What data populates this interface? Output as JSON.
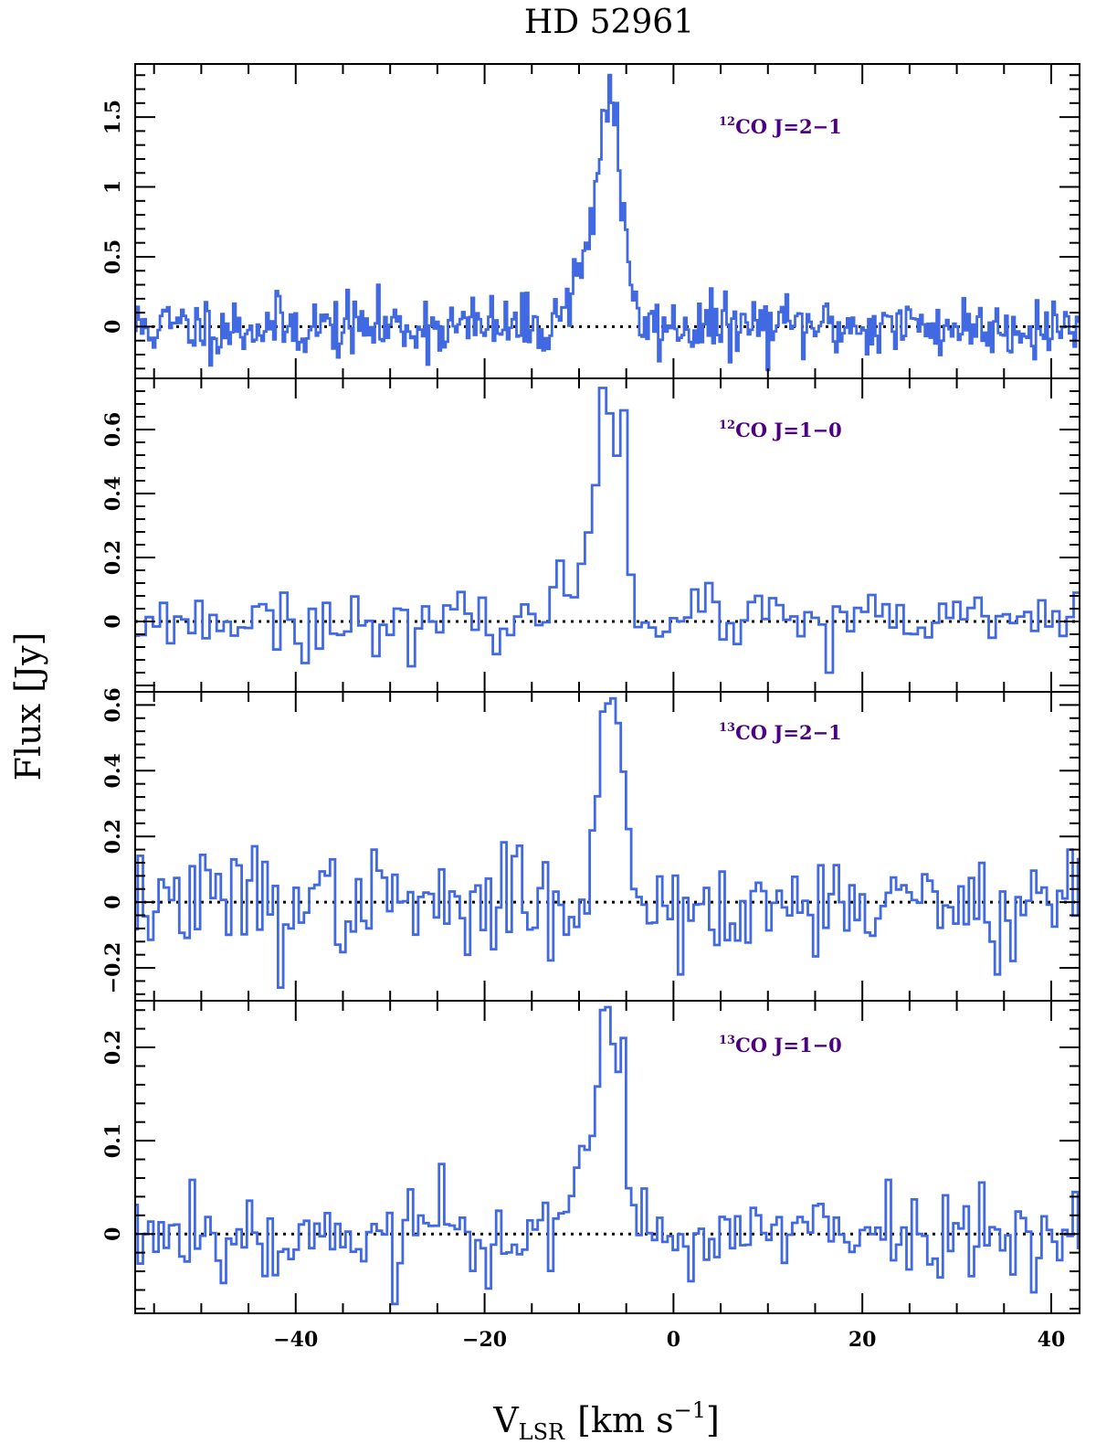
{
  "chart_data": {
    "type": "line",
    "style": "step",
    "title": "HD 52961",
    "xlabel": "V",
    "xlabel_sub": "LSR",
    "xlabel_units_open": "[km s",
    "xlabel_units_sup": "−1",
    "xlabel_units_close": "]",
    "ylabel": "Flux [Jy]",
    "xlim": [
      -57,
      43
    ],
    "xticks": [
      -40,
      -20,
      0,
      20,
      40
    ],
    "xtick_labels": [
      "−40",
      "−20",
      "0",
      "20",
      "40"
    ],
    "line_color": "#4169e1",
    "zero_line_color": "#000000",
    "label_color": "#4b0082",
    "panels": [
      {
        "isotope": "12",
        "transition": "CO J=2−1",
        "ylim": [
          -0.37,
          1.88
        ],
        "yticks": [
          0,
          0.5,
          1,
          1.5
        ],
        "ytick_labels": [
          "0",
          "0.5",
          "1",
          "1.5"
        ],
        "x_start": -57,
        "step": 0.25,
        "seed": 11,
        "noise": 0.11,
        "components": [
          {
            "center": -6.7,
            "peak": 1.58,
            "sigma": 1.15
          },
          {
            "center": -9.6,
            "peak": 0.45,
            "sigma": 1.3
          }
        ],
        "features": [
          {
            "x": -6.7,
            "y": 1.8
          },
          {
            "x": -7.4,
            "y": 1.55
          },
          {
            "x": -6.1,
            "y": 1.6
          }
        ]
      },
      {
        "isotope": "12",
        "transition": "CO J=1−0",
        "ylim": [
          -0.22,
          0.76
        ],
        "yticks": [
          0,
          0.2,
          0.4,
          0.6
        ],
        "ytick_labels": [
          "0",
          "0.2",
          "0.4",
          "0.6"
        ],
        "x_start": -57,
        "step": 0.75,
        "seed": 23,
        "noise": 0.04,
        "components": [
          {
            "center": -6.9,
            "peak": 0.69,
            "sigma": 1.45
          },
          {
            "center": -11.0,
            "peak": 0.1,
            "sigma": 0.9
          }
        ],
        "features": [
          {
            "x": -7.3,
            "y": 0.73
          },
          {
            "x": -5.1,
            "y": 0.66
          },
          {
            "x": -12.3,
            "y": 0.19
          },
          {
            "x": -41.5,
            "y": 0.09
          },
          {
            "x": -38.7,
            "y": -0.13
          },
          {
            "x": -27.5,
            "y": -0.14
          },
          {
            "x": 3.7,
            "y": 0.12
          },
          {
            "x": 16.8,
            "y": -0.16
          },
          {
            "x": 8.9,
            "y": 0.08
          },
          {
            "x": 42.5,
            "y": 0.09
          }
        ]
      },
      {
        "isotope": "13",
        "transition": "CO J=2−1",
        "ylim": [
          -0.3,
          0.64
        ],
        "yticks": [
          -0.2,
          0,
          0.2,
          0.4,
          0.6
        ],
        "ytick_labels": [
          "−0.2",
          "0",
          "0.2",
          "0.4",
          "0.6"
        ],
        "x_start": -57,
        "step": 0.55,
        "seed": 37,
        "noise": 0.075,
        "components": [
          {
            "center": -6.6,
            "peak": 0.57,
            "sigma": 1.35
          }
        ],
        "features": [
          {
            "x": -6.4,
            "y": 0.62
          },
          {
            "x": -7.3,
            "y": 0.58
          },
          {
            "x": -41.6,
            "y": -0.26
          },
          {
            "x": -40.6,
            "y": -0.08
          },
          {
            "x": -44.6,
            "y": 0.17
          },
          {
            "x": -21.7,
            "y": -0.16
          },
          {
            "x": -16.7,
            "y": 0.14
          },
          {
            "x": 0.6,
            "y": -0.22
          },
          {
            "x": 34.3,
            "y": -0.22
          },
          {
            "x": 41.8,
            "y": 0.16
          }
        ]
      },
      {
        "isotope": "13",
        "transition": "CO J=1−0",
        "ylim": [
          -0.085,
          0.25
        ],
        "yticks": [
          0,
          0.1,
          0.2
        ],
        "ytick_labels": [
          "0",
          "0.1",
          "0.2"
        ],
        "x_start": -57,
        "step": 0.55,
        "seed": 53,
        "noise": 0.022,
        "components": [
          {
            "center": -6.9,
            "peak": 0.215,
            "sigma": 1.35
          },
          {
            "center": -10.5,
            "peak": 0.03,
            "sigma": 1.6
          }
        ],
        "features": [
          {
            "x": -7.6,
            "y": 0.24
          },
          {
            "x": -5.5,
            "y": 0.21
          },
          {
            "x": -24.6,
            "y": 0.075
          },
          {
            "x": -50.9,
            "y": 0.058
          },
          {
            "x": -29.5,
            "y": -0.075
          },
          {
            "x": -43.3,
            "y": -0.045
          },
          {
            "x": 22.8,
            "y": 0.058
          },
          {
            "x": 42.5,
            "y": 0.045
          }
        ]
      }
    ]
  }
}
